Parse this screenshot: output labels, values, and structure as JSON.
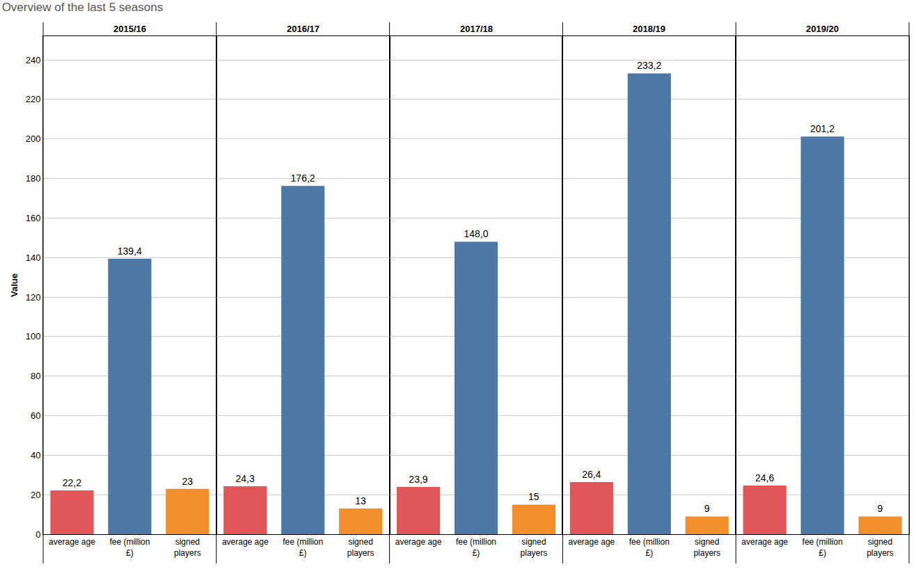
{
  "chart_data": {
    "type": "bar",
    "title": "Overview of the last 5 seasons",
    "ylabel": "Value",
    "ylim": [
      0,
      252
    ],
    "yticks": [
      0,
      20,
      40,
      60,
      80,
      100,
      120,
      140,
      160,
      180,
      200,
      220,
      240
    ],
    "grid": true,
    "data_labels": true,
    "categories": [
      "average age",
      "fee (million £)",
      "signed players"
    ],
    "colors": [
      "#e15759",
      "#4e79a7",
      "#f28e2b"
    ],
    "facets": [
      {
        "title": "2015/16",
        "values": [
          22.2,
          139.4,
          23
        ],
        "value_labels": [
          "22,2",
          "139,4",
          "23"
        ]
      },
      {
        "title": "2016/17",
        "values": [
          24.3,
          176.2,
          13
        ],
        "value_labels": [
          "24,3",
          "176,2",
          "13"
        ]
      },
      {
        "title": "2017/18",
        "values": [
          23.9,
          148.0,
          15
        ],
        "value_labels": [
          "23,9",
          "148,0",
          "15"
        ]
      },
      {
        "title": "2018/19",
        "values": [
          26.4,
          233.2,
          9
        ],
        "value_labels": [
          "26,4",
          "233,2",
          "9"
        ]
      },
      {
        "title": "2019/20",
        "values": [
          24.6,
          201.2,
          9
        ],
        "value_labels": [
          "24,6",
          "201,2",
          "9"
        ]
      }
    ]
  }
}
